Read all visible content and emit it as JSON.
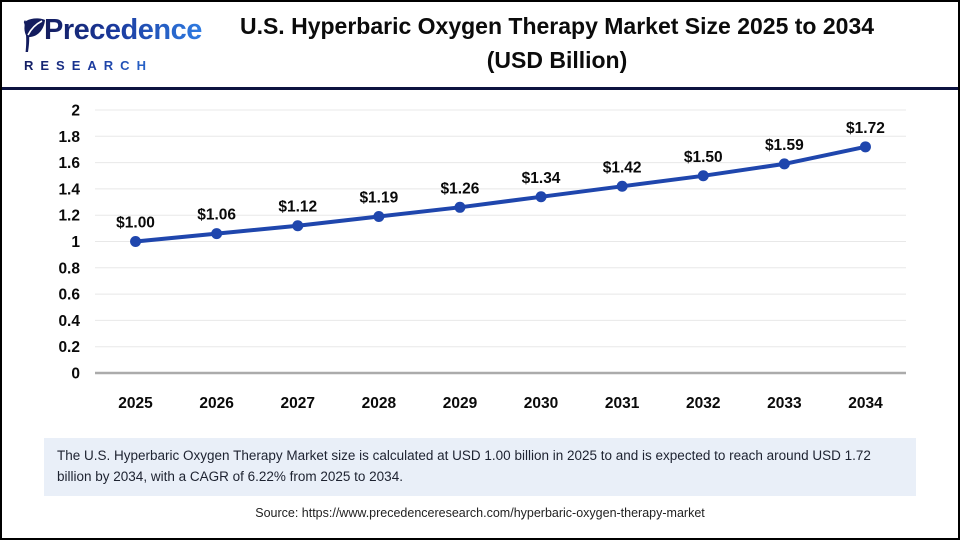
{
  "header": {
    "logo": {
      "name": "Precedence",
      "subtitle": "RESEARCH"
    },
    "title_line1": "U.S. Hyperbaric Oxygen Therapy Market Size 2025 to 2034",
    "title_line2": "(USD Billion)"
  },
  "chart_data": {
    "type": "line",
    "title": "U.S. Hyperbaric Oxygen Therapy Market Size 2025 to 2034 (USD Billion)",
    "categories": [
      "2025",
      "2026",
      "2027",
      "2028",
      "2029",
      "2030",
      "2031",
      "2032",
      "2033",
      "2034"
    ],
    "values": [
      1.0,
      1.06,
      1.12,
      1.19,
      1.26,
      1.34,
      1.42,
      1.5,
      1.59,
      1.72
    ],
    "point_labels": [
      "$1.00",
      "$1.06",
      "$1.12",
      "$1.19",
      "$1.26",
      "$1.34",
      "$1.42",
      "$1.50",
      "$1.59",
      "$1.72"
    ],
    "xlabel": "",
    "ylabel": "",
    "ylim": [
      0,
      2
    ],
    "ytick_labels": [
      "0",
      "0.2",
      "0.4",
      "0.6",
      "0.8",
      "1",
      "1.2",
      "1.4",
      "1.6",
      "1.8",
      "2"
    ],
    "grid": true,
    "legend": "none",
    "line_color": "#1f46ad",
    "marker_color": "#1f46ad",
    "gridline_color": "#e8e8e8",
    "axis_line_color": "#ababab",
    "label_color": "#0a0a0a"
  },
  "note": {
    "text": "The U.S. Hyperbaric Oxygen Therapy Market size is calculated at USD 1.00 billion in 2025 to and is expected to reach around USD 1.72 billion by 2034, with a CAGR of 6.22% from 2025 to 2034."
  },
  "source": {
    "text": "Source: https://www.precedenceresearch.com/hyperbaric-oxygen-therapy-market"
  }
}
